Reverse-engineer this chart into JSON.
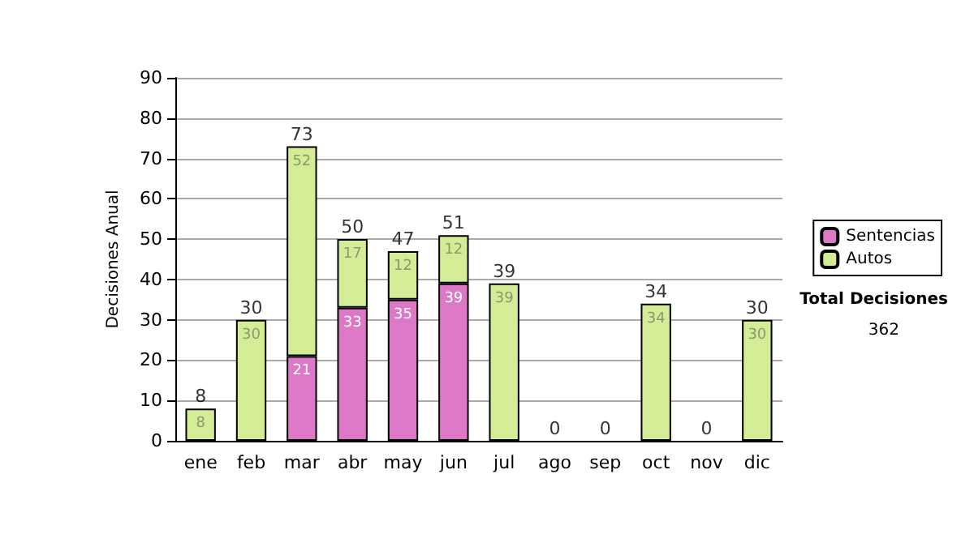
{
  "chart_data": {
    "type": "bar",
    "stacked": true,
    "ylabel": "Decisiones Anual",
    "categories": [
      "ene",
      "feb",
      "mar",
      "abr",
      "may",
      "jun",
      "jul",
      "ago",
      "sep",
      "oct",
      "nov",
      "dic"
    ],
    "series": [
      {
        "name": "Sentencias",
        "color": "#dd78c6",
        "values": [
          0,
          0,
          21,
          33,
          35,
          39,
          0,
          0,
          0,
          0,
          0,
          0
        ],
        "value_labels": [
          null,
          null,
          "21",
          "33",
          "35",
          "39",
          null,
          null,
          null,
          null,
          null,
          null
        ]
      },
      {
        "name": "Autos",
        "color": "#d5ec96",
        "values": [
          8,
          30,
          52,
          17,
          12,
          12,
          39,
          0,
          0,
          34,
          0,
          30
        ],
        "value_labels": [
          "8",
          "30",
          "52",
          "17",
          "12",
          "12",
          "39",
          null,
          null,
          "34",
          null,
          "30"
        ]
      }
    ],
    "totals": [
      "8",
      "30",
      "73",
      "50",
      "47",
      "51",
      "39",
      "0",
      "0",
      "34",
      "0",
      "30"
    ],
    "ylim": [
      0,
      90
    ],
    "yticks": [
      0,
      10,
      20,
      30,
      40,
      50,
      60,
      70,
      80,
      90
    ],
    "grid": "y",
    "legend": "right",
    "annotations": [
      "Total Decisiones",
      "362"
    ]
  }
}
